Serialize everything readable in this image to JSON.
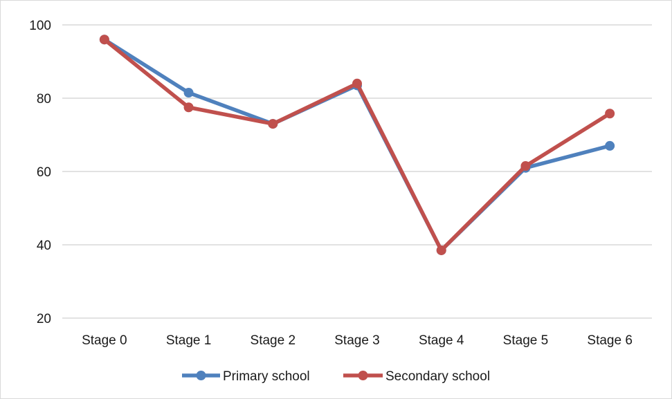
{
  "chart_data": {
    "type": "line",
    "categories": [
      "Stage 0",
      "Stage 1",
      "Stage 2",
      "Stage 3",
      "Stage 4",
      "Stage 5",
      "Stage 6"
    ],
    "series": [
      {
        "name": "Primary school",
        "color": "#4f81bd",
        "values": [
          96,
          81.5,
          73,
          83.5,
          38.5,
          61,
          67
        ]
      },
      {
        "name": "Secondary school",
        "color": "#c0504d",
        "values": [
          96,
          77.5,
          73,
          84,
          38.5,
          61.5,
          75.8
        ]
      }
    ],
    "yticks": [
      20,
      40,
      60,
      80,
      100
    ],
    "ylim": [
      20,
      100
    ],
    "grid": true,
    "legend": "bottom",
    "title": "",
    "xlabel": "",
    "ylabel": ""
  }
}
